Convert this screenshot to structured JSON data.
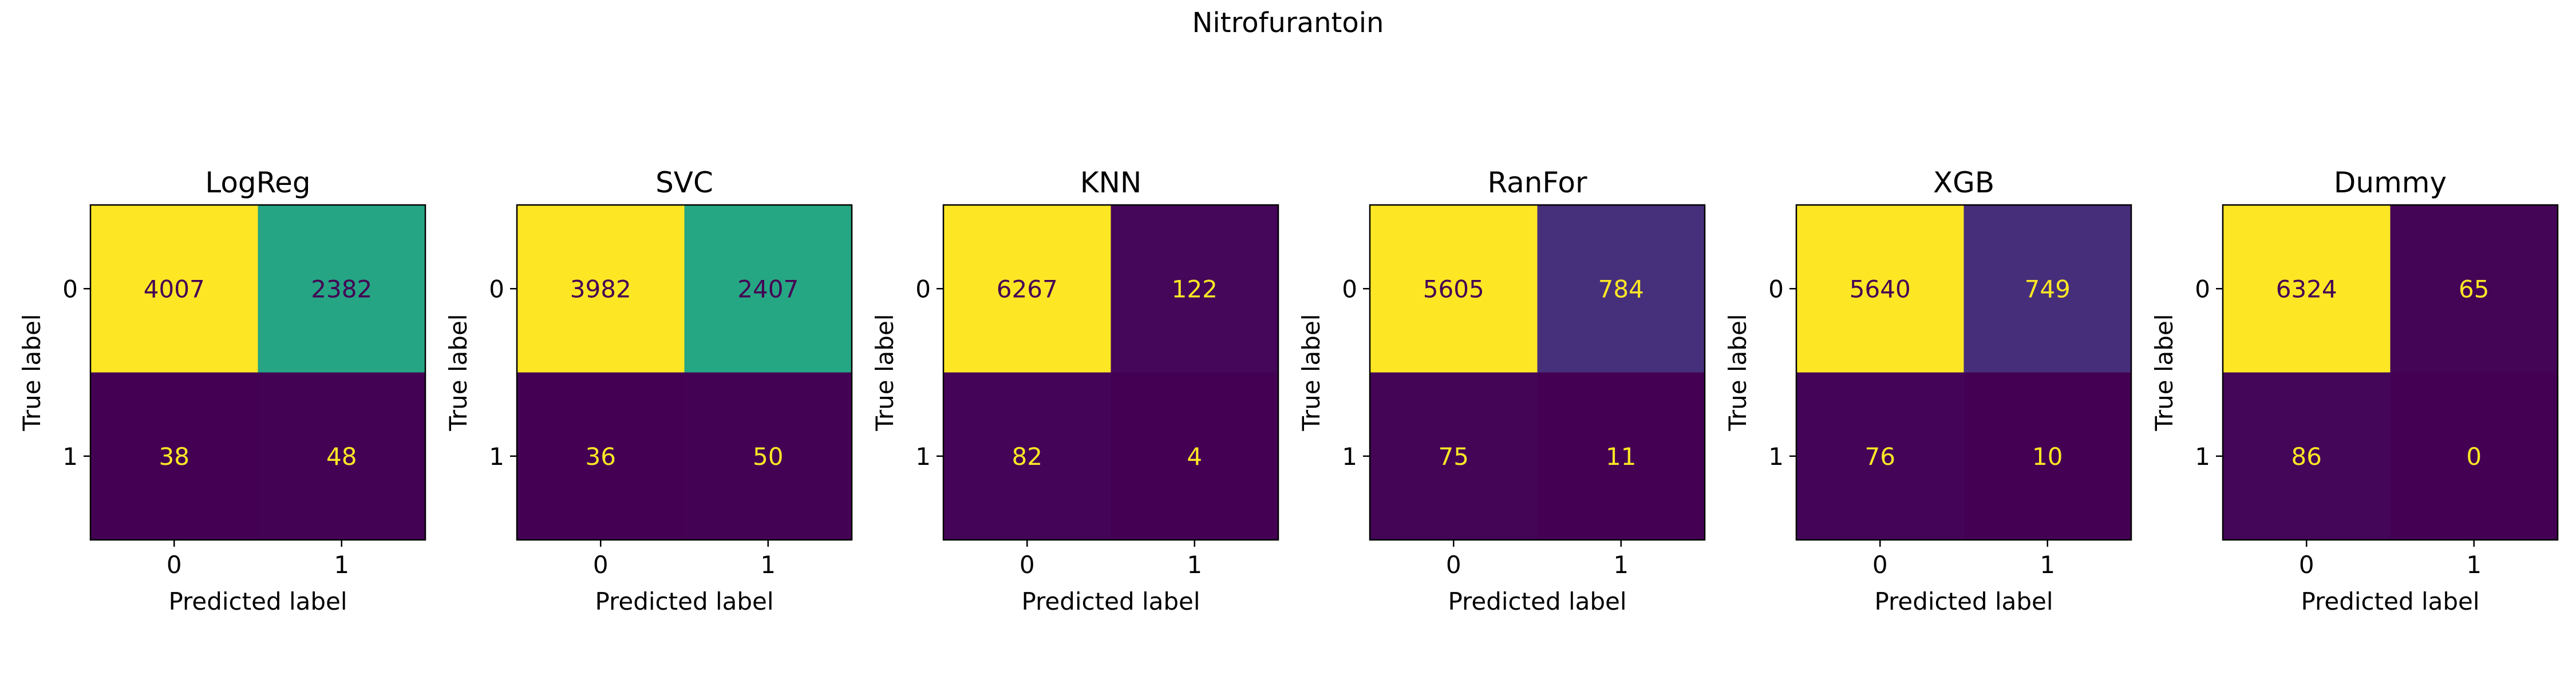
{
  "figure": {
    "suptitle": "Nitrofurantoin"
  },
  "chart_data": [
    {
      "type": "heatmap",
      "title": "LogReg",
      "xlabel": "Predicted label",
      "ylabel": "True label",
      "x_ticks": [
        "0",
        "1"
      ],
      "y_ticks": [
        "0",
        "1"
      ],
      "matrix": [
        [
          4007,
          2382
        ],
        [
          38,
          48
        ]
      ]
    },
    {
      "type": "heatmap",
      "title": "SVC",
      "xlabel": "Predicted label",
      "ylabel": "True label",
      "x_ticks": [
        "0",
        "1"
      ],
      "y_ticks": [
        "0",
        "1"
      ],
      "matrix": [
        [
          3982,
          2407
        ],
        [
          36,
          50
        ]
      ]
    },
    {
      "type": "heatmap",
      "title": "KNN",
      "xlabel": "Predicted label",
      "ylabel": "True label",
      "x_ticks": [
        "0",
        "1"
      ],
      "y_ticks": [
        "0",
        "1"
      ],
      "matrix": [
        [
          6267,
          122
        ],
        [
          82,
          4
        ]
      ]
    },
    {
      "type": "heatmap",
      "title": "RanFor",
      "xlabel": "Predicted label",
      "ylabel": "True label",
      "x_ticks": [
        "0",
        "1"
      ],
      "y_ticks": [
        "0",
        "1"
      ],
      "matrix": [
        [
          5605,
          784
        ],
        [
          75,
          11
        ]
      ]
    },
    {
      "type": "heatmap",
      "title": "XGB",
      "xlabel": "Predicted label",
      "ylabel": "True label",
      "x_ticks": [
        "0",
        "1"
      ],
      "y_ticks": [
        "0",
        "1"
      ],
      "matrix": [
        [
          5640,
          749
        ],
        [
          76,
          10
        ]
      ]
    },
    {
      "type": "heatmap",
      "title": "Dummy",
      "xlabel": "Predicted label",
      "ylabel": "True label",
      "x_ticks": [
        "0",
        "1"
      ],
      "y_ticks": [
        "0",
        "1"
      ],
      "matrix": [
        [
          6324,
          65
        ],
        [
          86,
          0
        ]
      ]
    }
  ]
}
